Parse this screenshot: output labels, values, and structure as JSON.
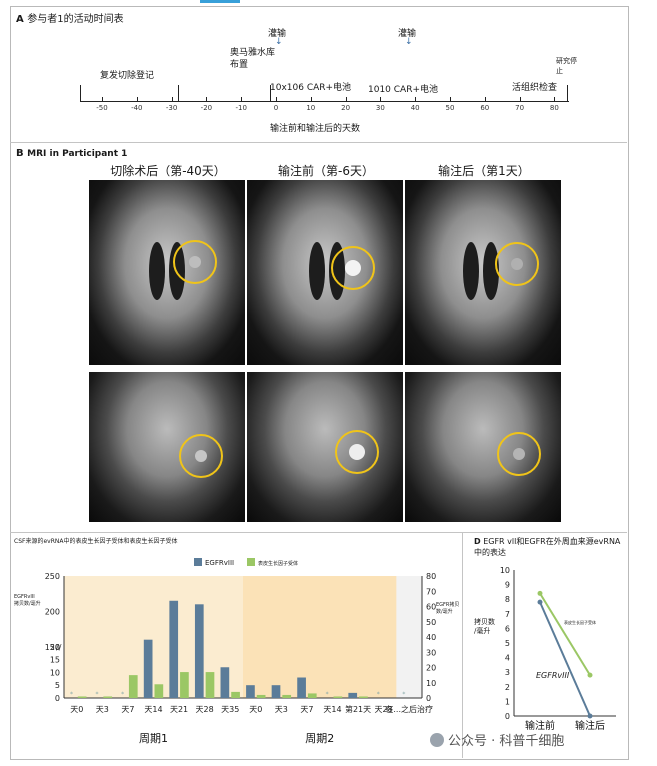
{
  "panelA": {
    "label": "A",
    "title": "参与者1的活动时间表",
    "events": {
      "resection": "复发切除登记",
      "ommaya": "奥马雅水库布置",
      "infusion1": "灌输",
      "infusion2": "灌输",
      "dose1": "10x106 CAR+电池",
      "dose2": "1010 CAR+电池",
      "biopsy": "活组织检查",
      "study_stop": "研究停止"
    },
    "axis_title": "输注前和输注后的天数",
    "tick_labels": [
      "-50",
      "-40",
      "-30",
      "-20",
      "-10",
      "0",
      "10",
      "20",
      "30",
      "40",
      "50",
      "60",
      "70",
      "80"
    ]
  },
  "panelB": {
    "label": "B",
    "title": "MRI in Participant 1",
    "columns": [
      "切除术后（第-40天）",
      "输注前（第-6天）",
      "输注后（第1天）"
    ]
  },
  "panelC": {
    "title": "CSF来源的evRNA中的表皮生长因子受体和表皮生长因子受体",
    "legend": [
      {
        "name": "EGFRvIII",
        "color": "#5b7c99"
      },
      {
        "name": "表皮生长因子受体",
        "color": "#9bc765"
      }
    ],
    "left_axis_label": "EGFRvIII\n拷贝数/毫升",
    "right_axis_label": "EGFR拷贝\n数/毫升",
    "cycle1": "周期1",
    "cycle2": "周期2",
    "after_label": "在...之后\n治疗",
    "bands": {
      "cycle1": "#fbecd0",
      "cycle2": "#fbe2b7",
      "after": "#f2f2f2"
    }
  },
  "chart_data": {
    "type": "bar",
    "title": "CSF来源的evRNA中的表皮生长因子受体和表皮生长因子受体",
    "categories": [
      "天0",
      "天3",
      "天7",
      "天14",
      "天21",
      "天28",
      "天35",
      "天0",
      "天3",
      "天7",
      "天14",
      "第21天",
      "天28",
      "在...之后治疗"
    ],
    "series": [
      {
        "name": "EGFRvIII",
        "axis": "left",
        "values": [
          0,
          0,
          0,
          160,
          215,
          210,
          12,
          5,
          5,
          8,
          0,
          2,
          0,
          0
        ]
      },
      {
        "name": "表皮生长因子受体",
        "axis": "right",
        "values": [
          1,
          1,
          15,
          9,
          17,
          17,
          4,
          2,
          2,
          3,
          1,
          1,
          0,
          0
        ]
      }
    ],
    "ylim_left": [
      0,
      250
    ],
    "left_ticks": [
      0,
      5,
      10,
      15,
      20,
      150,
      200,
      250
    ],
    "ylim_right": [
      0,
      80
    ],
    "right_ticks": [
      0,
      10,
      20,
      30,
      40,
      50,
      60,
      70,
      80
    ]
  },
  "panelD": {
    "label": "D",
    "title": "EGFR vll和EGFR在外周血来源evRNA中的表达",
    "y_label": "拷贝数\n/毫升",
    "series_egfrviii": "EGFRvIII",
    "series_egfr": "表皮生长因子受体",
    "x_labels": [
      "输注前",
      "输注后"
    ],
    "y_ticks": [
      "0",
      "1",
      "2",
      "3",
      "4",
      "5",
      "6",
      "7",
      "8",
      "9",
      "10"
    ],
    "points": {
      "egfrviii": [
        7.8,
        0.0
      ],
      "egfr": [
        8.4,
        2.8
      ]
    }
  },
  "watermark": "公众号 · 科普千细胞"
}
